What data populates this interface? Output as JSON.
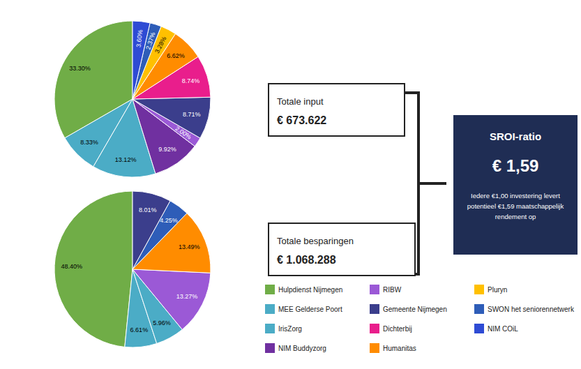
{
  "chart_data": [
    {
      "type": "pie",
      "categories": [
        "Hulpdienst Nijmegen",
        "MEE Gelderse Poort",
        "IrisZorg",
        "NIM Buddyzorg",
        "RIBW",
        "Gemeente Nijmegen",
        "Dichterbij",
        "Humanitas",
        "Pluryn",
        "SWON het seniorennetwerk",
        "NIM COiL"
      ],
      "values": [
        33.3,
        8.33,
        13.12,
        9.92,
        2.0,
        8.71,
        8.74,
        6.62,
        3.28,
        2.37,
        3.6
      ],
      "value_labels": [
        "33.30%",
        "8.33%",
        "13.12%",
        "9.92%",
        "2.00%",
        "8.71%",
        "8.74%",
        "6.62%",
        "3.28%",
        "2.37%",
        "3.60%"
      ],
      "colors": [
        "#70AD47",
        "#4BACC6",
        "#4BACC6",
        "#7030A0",
        "#9B59D6",
        "#3B3E8C",
        "#E91E8C",
        "#FF8C00",
        "#FFC000",
        "#2E5DB8",
        "#2E4BD4"
      ],
      "data_labels": true,
      "legend": "bottom",
      "annotations": [
        "Totale input",
        "€ 673.622",
        "Totale besparingen",
        "€ 1.068.288",
        "SROI-ratio",
        "€ 1,59",
        "Iedere €1,00 investering levert\npotentieel €1,59 maatschappelijk\nrendement op"
      ]
    },
    {
      "type": "pie",
      "categories": [
        "Hulpdienst Nijmegen",
        "MEE Gelderse Poort",
        "IrisZorg",
        "RIBW",
        "Humanitas",
        "SWON het seniorennetwerk",
        "Gemeente Nijmegen"
      ],
      "values": [
        48.4,
        6.61,
        5.96,
        13.27,
        13.49,
        4.25,
        8.01
      ],
      "value_labels": [
        "48.40%",
        "6.61%",
        "5.96%",
        "13.27%",
        "13.49%",
        "4.25%",
        "8.01%"
      ],
      "colors": [
        "#70AD47",
        "#4BACC6",
        "#4BACC6",
        "#9B59D6",
        "#FF8C00",
        "#2E5DB8",
        "#3B3E8C"
      ],
      "data_labels": true
    }
  ]
}
